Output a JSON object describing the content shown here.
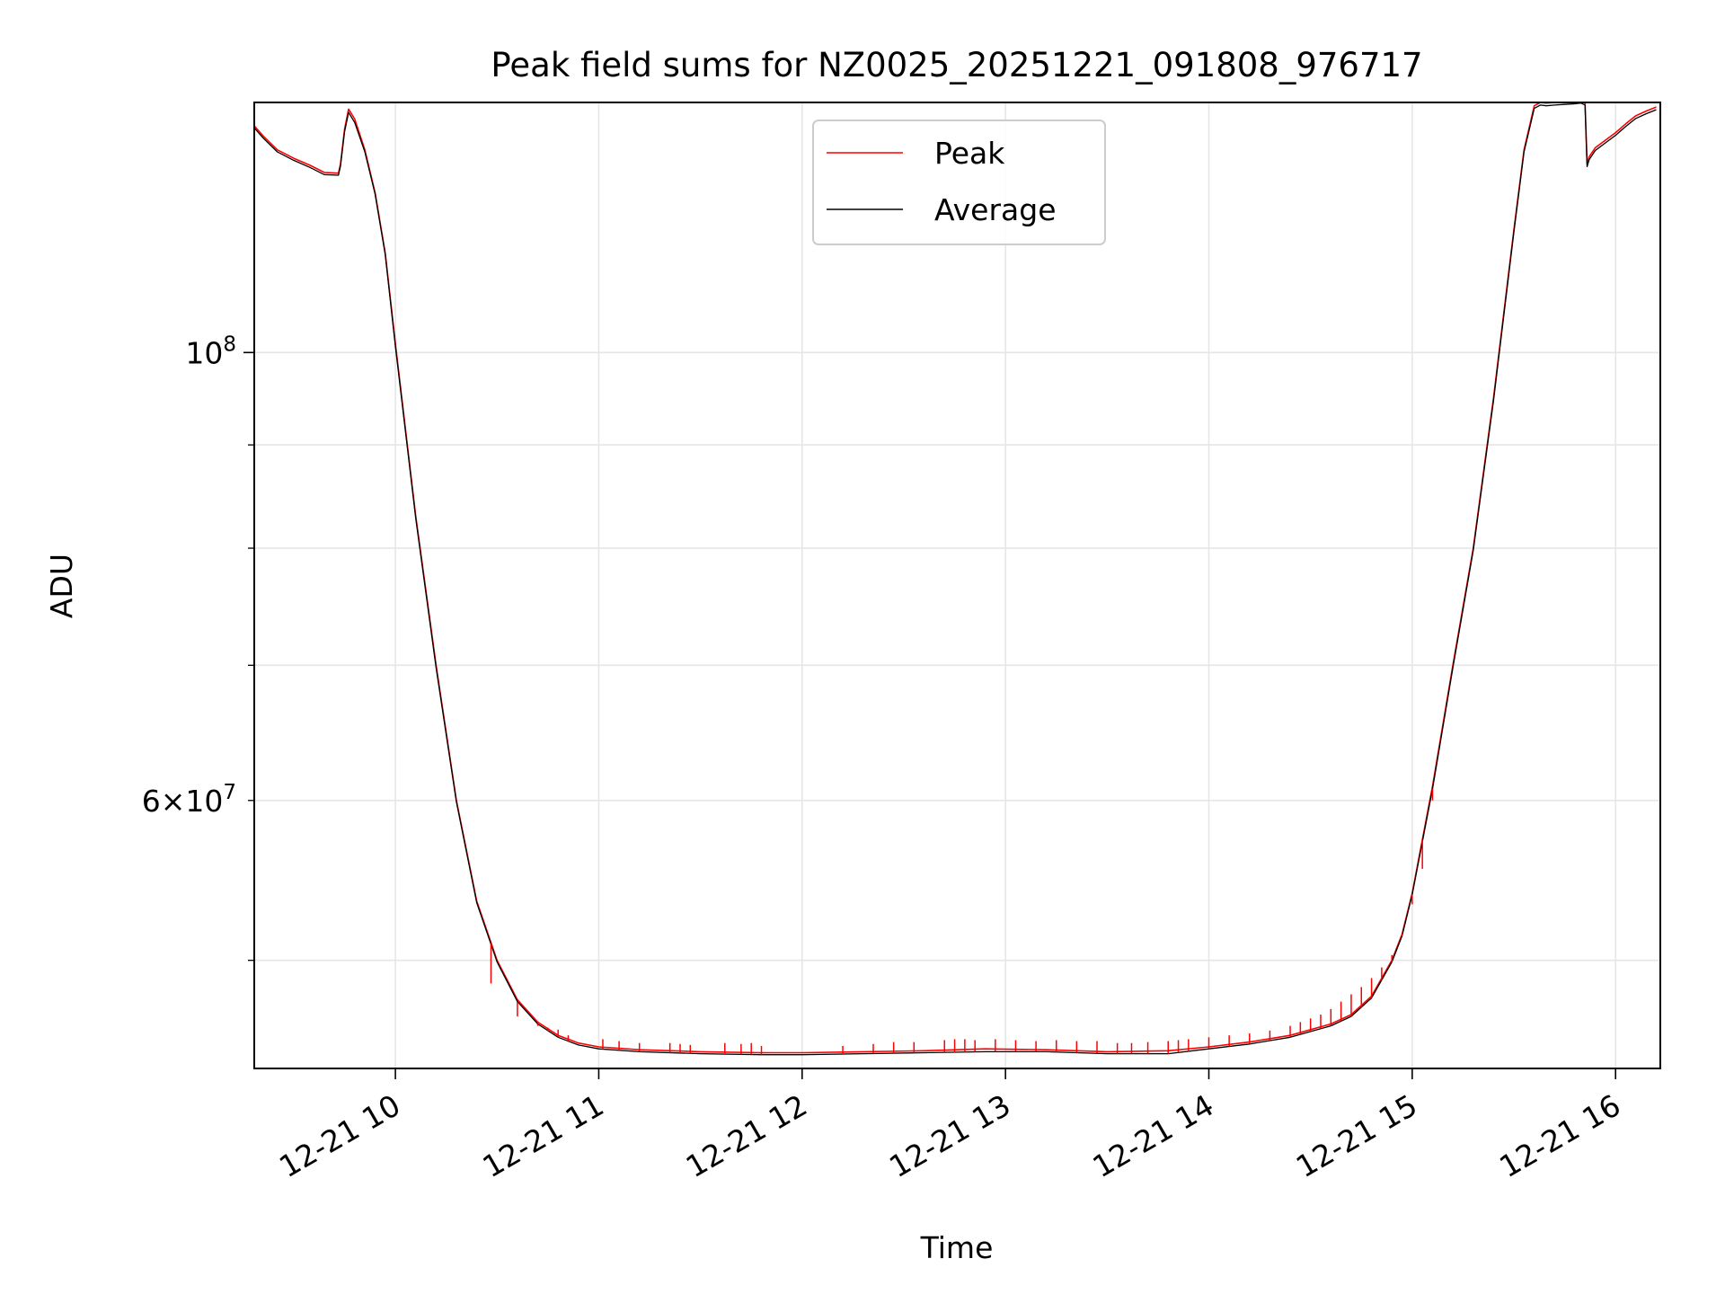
{
  "chart_data": {
    "type": "line",
    "title": "Peak field sums for NZ0025_20251221_091808_976717",
    "xlabel": "Time",
    "ylabel": "ADU",
    "yscale": "log",
    "xlim_hours": [
      9.306,
      16.22
    ],
    "ylim": [
      44200000,
      133000000
    ],
    "grid": true,
    "legend_position": "upper center",
    "x_ticks": [
      {
        "label": "12-21 10",
        "value": 10
      },
      {
        "label": "12-21 11",
        "value": 11
      },
      {
        "label": "12-21 12",
        "value": 12
      },
      {
        "label": "12-21 13",
        "value": 13
      },
      {
        "label": "12-21 14",
        "value": 14
      },
      {
        "label": "12-21 15",
        "value": 15
      },
      {
        "label": "12-21 16",
        "value": 16
      }
    ],
    "y_major_ticks": [
      {
        "label_base": "10",
        "label_exp": "8",
        "value": 100000000
      }
    ],
    "y_minor_labeled_ticks": [
      {
        "label_coef": "6",
        "label_times": "×",
        "label_base": "10",
        "label_exp": "7",
        "value": 60000000
      }
    ],
    "y_minor_unlabeled_ticks": [
      50000000,
      70000000,
      80000000,
      90000000
    ],
    "series": [
      {
        "name": "Peak",
        "color": "#ff0000",
        "x_hours": [
          9.306,
          9.35,
          9.42,
          9.5,
          9.58,
          9.65,
          9.72,
          9.73,
          9.75,
          9.77,
          9.8,
          9.85,
          9.9,
          9.95,
          10.0,
          10.1,
          10.2,
          10.3,
          10.4,
          10.5,
          10.6,
          10.7,
          10.8,
          10.9,
          11.0,
          11.2,
          11.5,
          11.8,
          12.0,
          12.3,
          12.6,
          12.9,
          13.2,
          13.5,
          13.8,
          14.0,
          14.2,
          14.4,
          14.6,
          14.7,
          14.8,
          14.9,
          14.95,
          15.0,
          15.1,
          15.2,
          15.3,
          15.4,
          15.5,
          15.55,
          15.6,
          15.63,
          15.66,
          15.7,
          15.75,
          15.8,
          15.83,
          15.85,
          15.86,
          15.87,
          15.9,
          15.95,
          16.0,
          16.05,
          16.1,
          16.15,
          16.2
        ],
        "values": [
          129500000,
          128000000,
          126000000,
          124800000,
          123800000,
          122800000,
          122700000,
          124000000,
          129000000,
          132000000,
          130500000,
          126000000,
          120000000,
          112000000,
          101000000,
          83000000,
          70000000,
          60000000,
          53500000,
          50000000,
          47800000,
          46600000,
          45900000,
          45500000,
          45300000,
          45150000,
          45050000,
          45000000,
          45000000,
          45050000,
          45100000,
          45200000,
          45150000,
          45050000,
          45100000,
          45300000,
          45550000,
          45900000,
          46500000,
          47000000,
          48000000,
          50000000,
          51500000,
          54000000,
          61000000,
          70000000,
          80000000,
          95000000,
          115000000,
          126000000,
          132500000,
          133000000,
          132900000,
          133000000,
          133100000,
          133200000,
          133300000,
          133000000,
          124000000,
          125000000,
          126300000,
          127400000,
          128500000,
          129800000,
          131000000,
          131700000,
          132300000
        ]
      },
      {
        "name": "Average",
        "color": "#000000",
        "x_hours": [
          9.306,
          9.35,
          9.42,
          9.5,
          9.58,
          9.65,
          9.72,
          9.73,
          9.75,
          9.77,
          9.8,
          9.85,
          9.9,
          9.95,
          10.0,
          10.1,
          10.2,
          10.3,
          10.4,
          10.5,
          10.6,
          10.7,
          10.8,
          10.9,
          11.0,
          11.2,
          11.5,
          11.8,
          12.0,
          12.3,
          12.6,
          12.9,
          13.2,
          13.5,
          13.8,
          14.0,
          14.2,
          14.4,
          14.6,
          14.7,
          14.8,
          14.9,
          14.95,
          15.0,
          15.1,
          15.2,
          15.3,
          15.4,
          15.5,
          15.55,
          15.6,
          15.63,
          15.66,
          15.7,
          15.75,
          15.8,
          15.83,
          15.85,
          15.86,
          15.87,
          15.9,
          15.95,
          16.0,
          16.05,
          16.1,
          16.15,
          16.2
        ],
        "values": [
          129200000,
          127700000,
          125700000,
          124500000,
          123500000,
          122500000,
          122400000,
          123700000,
          128600000,
          131500000,
          130000000,
          125700000,
          119800000,
          111800000,
          100700000,
          82800000,
          69800000,
          59900000,
          53400000,
          49900000,
          47700000,
          46500000,
          45800000,
          45400000,
          45200000,
          45050000,
          44950000,
          44900000,
          44900000,
          44950000,
          45000000,
          45050000,
          45050000,
          44950000,
          44950000,
          45200000,
          45450000,
          45800000,
          46400000,
          46900000,
          47900000,
          49900000,
          51400000,
          53900000,
          60800000,
          69800000,
          79800000,
          94700000,
          114700000,
          125700000,
          132100000,
          132600000,
          132500000,
          132600000,
          132700000,
          132800000,
          132900000,
          132600000,
          123600000,
          124600000,
          125900000,
          127000000,
          128100000,
          129400000,
          130600000,
          131300000,
          131900000
        ]
      }
    ],
    "peak_spikes": {
      "series": "Peak",
      "x_hours": [
        10.47,
        10.6,
        10.7,
        10.75,
        10.8,
        10.85,
        11.02,
        11.1,
        11.2,
        11.35,
        11.4,
        11.45,
        11.62,
        11.7,
        11.75,
        11.8,
        12.2,
        12.35,
        12.45,
        12.55,
        12.7,
        12.75,
        12.8,
        12.85,
        12.95,
        13.05,
        13.15,
        13.25,
        13.35,
        13.45,
        13.55,
        13.62,
        13.7,
        13.8,
        13.85,
        13.9,
        14.0,
        14.1,
        14.2,
        14.3,
        14.4,
        14.45,
        14.5,
        14.55,
        14.6,
        14.65,
        14.7,
        14.75,
        14.8,
        14.85,
        14.9,
        14.95,
        15.0,
        15.05,
        15.1
      ],
      "values": [
        48700000,
        46900000,
        46400000,
        46300000,
        46200000,
        45900000,
        45700000,
        45600000,
        45500000,
        45500000,
        45450000,
        45400000,
        45500000,
        45450000,
        45500000,
        45350000,
        45350000,
        45450000,
        45550000,
        45550000,
        45650000,
        45700000,
        45700000,
        45650000,
        45700000,
        45650000,
        45600000,
        45650000,
        45600000,
        45600000,
        45500000,
        45500000,
        45550000,
        45600000,
        45650000,
        45700000,
        45800000,
        45900000,
        46000000,
        46150000,
        46400000,
        46600000,
        46800000,
        47000000,
        47300000,
        47700000,
        48100000,
        48500000,
        49000000,
        49600000,
        50300000,
        51500000,
        53300000,
        55500000,
        60000000
      ]
    }
  }
}
